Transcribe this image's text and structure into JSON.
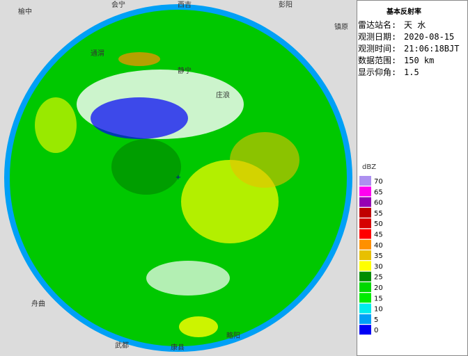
{
  "header": {
    "title": "基本反射率"
  },
  "info": [
    {
      "label": "雷达站名:",
      "value": "天 水"
    },
    {
      "label": "观测日期:",
      "value": "2020-08-15"
    },
    {
      "label": "观测时间:",
      "value": "21:06:18BJT"
    },
    {
      "label": "数据范围:",
      "value": "150 km"
    },
    {
      "label": "显示仰角:",
      "value": "1.5"
    }
  ],
  "legend": {
    "unit": "dBZ",
    "levels": [
      {
        "value": 70,
        "color": "#ad90f0"
      },
      {
        "value": 65,
        "color": "#ff00f0"
      },
      {
        "value": 60,
        "color": "#9600b4"
      },
      {
        "value": 55,
        "color": "#c00000"
      },
      {
        "value": 50,
        "color": "#d60000"
      },
      {
        "value": 45,
        "color": "#ff0000"
      },
      {
        "value": 40,
        "color": "#ff9000"
      },
      {
        "value": 35,
        "color": "#e7c000"
      },
      {
        "value": 30,
        "color": "#ffff00"
      },
      {
        "value": 25,
        "color": "#008c00"
      },
      {
        "value": 20,
        "color": "#00d800"
      },
      {
        "value": 15,
        "color": "#00ec00"
      },
      {
        "value": 10,
        "color": "#00ecec"
      },
      {
        "value": 5,
        "color": "#00a0f6"
      },
      {
        "value": 0,
        "color": "#0000f6"
      }
    ]
  },
  "map": {
    "cities": [
      {
        "name": "榆中"
      },
      {
        "name": "会宁"
      },
      {
        "name": "西吉"
      },
      {
        "name": "彭阳"
      },
      {
        "name": "镇原"
      },
      {
        "name": "静宁"
      },
      {
        "name": "庄浪"
      },
      {
        "name": "通渭"
      },
      {
        "name": "舟曲"
      },
      {
        "name": "武都"
      },
      {
        "name": "康县"
      },
      {
        "name": "略阳"
      }
    ]
  }
}
